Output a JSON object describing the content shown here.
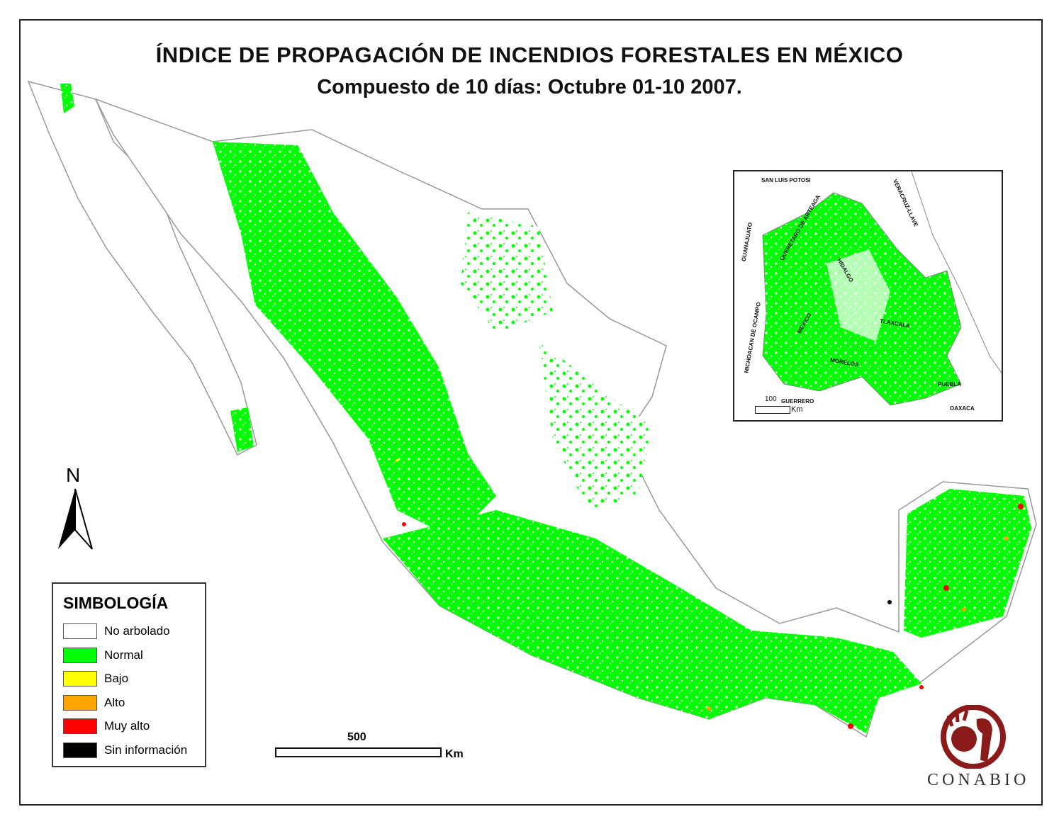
{
  "title": "ÍNDICE DE PROPAGACIÓN DE INCENDIOS FORESTALES EN MÉXICO",
  "subtitle": "Compuesto de 10 días: Octubre 01-10 2007.",
  "north_label": "N",
  "legend": {
    "title": "SIMBOLOGÍA",
    "items": [
      {
        "label": "No arbolado",
        "color": "#ffffff"
      },
      {
        "label": "Normal",
        "color": "#00ff00"
      },
      {
        "label": "Bajo",
        "color": "#ffff00"
      },
      {
        "label": "Alto",
        "color": "#ffa500"
      },
      {
        "label": "Muy alto",
        "color": "#ff0000"
      },
      {
        "label": "Sin información",
        "color": "#000000"
      }
    ]
  },
  "scale": {
    "value": "500",
    "unit": "Km"
  },
  "inset": {
    "labels": [
      "SAN LUIS POTOSI",
      "VERACRUZ-LLAVE",
      "GUANAJUATO",
      "QUERETARO DE ARTEAGA",
      "HIDALGO",
      "MICHOACAN DE OCAMPO",
      "MEXICO",
      "TLAXCALA",
      "MORELOS",
      "PUEBLA",
      "OAXACA",
      "GUERRERO"
    ],
    "scale": {
      "value": "100",
      "unit": "Km"
    }
  },
  "logo": {
    "text": "CONABIO",
    "color": "#8b1a1a"
  }
}
